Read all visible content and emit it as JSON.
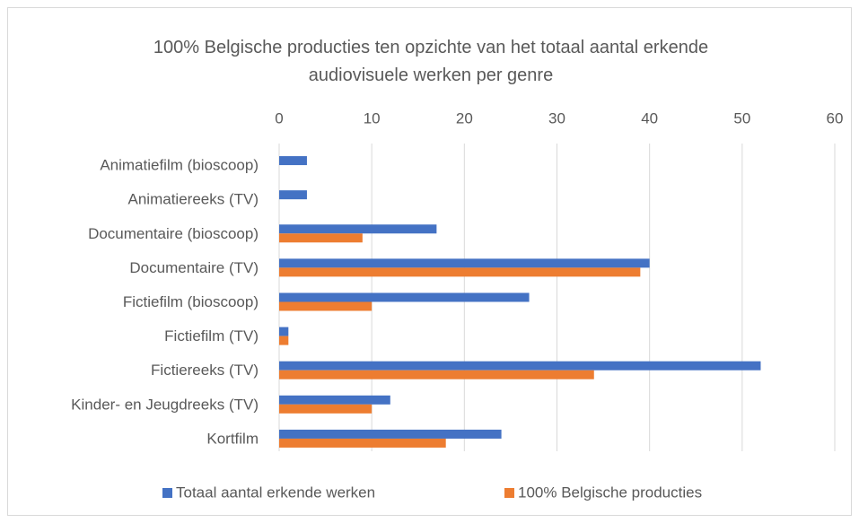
{
  "chart_data": {
    "type": "hbar",
    "title": "100% Belgische producties ten opzichte van het totaal aantal erkende audiovisuele werken per genre",
    "categories": [
      "Animatiefilm (bioscoop)",
      "Animatiereeks (TV)",
      "Documentaire (bioscoop)",
      "Documentaire (TV)",
      "Fictiefilm (bioscoop)",
      "Fictiefilm (TV)",
      "Fictiereeks (TV)",
      "Kinder- en Jeugdreeks (TV)",
      "Kortfilm"
    ],
    "series": [
      {
        "name": "Totaal aantal erkende werken",
        "color": "#4472c4",
        "values": [
          3,
          3,
          17,
          40,
          27,
          1,
          52,
          12,
          24
        ]
      },
      {
        "name": "100% Belgische producties",
        "color": "#ed7d31",
        "values": [
          0,
          0,
          9,
          39,
          10,
          1,
          34,
          10,
          18
        ]
      }
    ],
    "xlim": [
      0,
      60
    ],
    "xticks": [
      0,
      10,
      20,
      30,
      40,
      50,
      60
    ],
    "grid": true,
    "legend": "bottom"
  }
}
